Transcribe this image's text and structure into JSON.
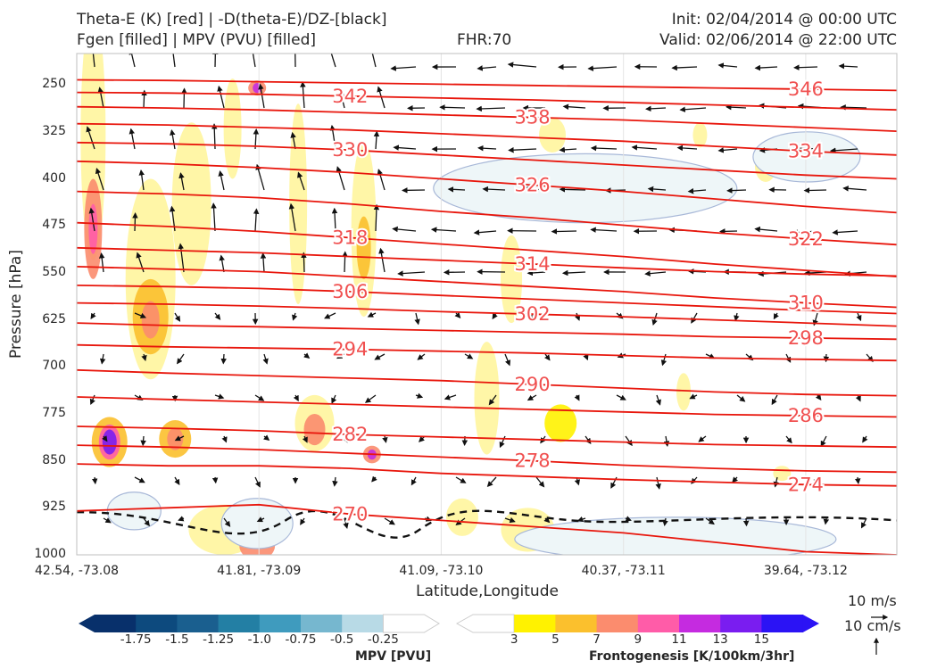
{
  "header": {
    "title_left_1": "Theta-E (K) [red] | -D(theta-E)/DZ-[black]",
    "title_left_2": "Fgen [filled] | MPV (PVU) [filled]",
    "fhr": "FHR:70",
    "init": "Init: 02/04/2014 @ 00:00 UTC",
    "valid": "Valid: 02/06/2014 @ 22:00 UTC"
  },
  "chart_data": {
    "type": "cross-section",
    "title": "Theta-E (K) [red] | -D(theta-E)/DZ-[black] / Fgen [filled] | MPV (PVU) [filled]",
    "xlabel": "Latitude,Longitude",
    "ylabel": "Pressure [hPa]",
    "y_ticks": [
      "250",
      "325",
      "400",
      "475",
      "550",
      "625",
      "700",
      "775",
      "850",
      "925",
      "1000"
    ],
    "y_tick_values": [
      250,
      325,
      400,
      475,
      550,
      625,
      700,
      775,
      850,
      925,
      1000
    ],
    "ylim": [
      1000,
      200
    ],
    "x_ticks": [
      "42.54, -73.08",
      "41.81, -73.09",
      "41.09, -73.10",
      "40.37, -73.11",
      "39.64, -73.12"
    ],
    "x_tick_positions": [
      0,
      0.2222,
      0.4444,
      0.6667,
      0.8889
    ],
    "theta_e_contours": [
      {
        "label": "270",
        "values": [
          930,
          925,
          920,
          935,
          945,
          955,
          965,
          980,
          995,
          1000
        ]
      },
      {
        "label": "274",
        "values": [
          855,
          858,
          858,
          862,
          870,
          875,
          880,
          884,
          888,
          890
        ]
      },
      {
        "label": "278",
        "values": [
          825,
          828,
          832,
          838,
          844,
          850,
          857,
          862,
          866,
          868
        ]
      },
      {
        "label": "282",
        "values": [
          795,
          798,
          802,
          808,
          812,
          816,
          820,
          824,
          826,
          828
        ]
      },
      {
        "label": "286",
        "values": [
          748,
          752,
          756,
          760,
          764,
          768,
          772,
          776,
          778,
          780
        ]
      },
      {
        "label": "290",
        "values": [
          705,
          710,
          714,
          718,
          722,
          728,
          734,
          740,
          744,
          746
        ]
      },
      {
        "label": "294",
        "values": [
          665,
          668,
          670,
          672,
          675,
          678,
          682,
          686,
          688,
          690
        ]
      },
      {
        "label": "298",
        "values": [
          630,
          634,
          636,
          639,
          642,
          645,
          648,
          652,
          654,
          656
        ]
      },
      {
        "label": "302",
        "values": [
          598,
          600,
          603,
          607,
          612,
          616,
          620,
          625,
          630,
          635
        ]
      },
      {
        "label": "306",
        "values": [
          570,
          572,
          575,
          580,
          586,
          592,
          598,
          604,
          610,
          615
        ]
      },
      {
        "label": "310",
        "values": [
          540,
          544,
          548,
          556,
          564,
          572,
          580,
          590,
          598,
          605
        ]
      },
      {
        "label": "314",
        "values": [
          510,
          514,
          518,
          524,
          530,
          536,
          542,
          548,
          552,
          555
        ]
      },
      {
        "label": "318",
        "values": [
          470,
          476,
          484,
          494,
          504,
          514,
          524,
          536,
          546,
          556
        ]
      },
      {
        "label": "322",
        "values": [
          420,
          424,
          430,
          440,
          452,
          462,
          474,
          486,
          496,
          505
        ]
      },
      {
        "label": "326",
        "values": [
          372,
          376,
          382,
          390,
          400,
          410,
          420,
          432,
          444,
          454
        ]
      },
      {
        "label": "330",
        "values": [
          342,
          344,
          348,
          354,
          362,
          370,
          378,
          386,
          394,
          400
        ]
      },
      {
        "label": "334",
        "values": [
          312,
          314,
          318,
          322,
          328,
          334,
          340,
          348,
          356,
          362
        ]
      },
      {
        "label": "338",
        "values": [
          285,
          287,
          290,
          294,
          298,
          302,
          306,
          312,
          318,
          324
        ]
      },
      {
        "label": "342",
        "values": [
          262,
          263,
          265,
          268,
          271,
          274,
          278,
          282,
          286,
          290
        ]
      },
      {
        "label": "346",
        "values": [
          242,
          243,
          245,
          247,
          249,
          251,
          253,
          255,
          257,
          259
        ]
      }
    ],
    "mpv_colorbar": {
      "label": "MPV [PVU]",
      "ticks": [
        "-1.75",
        "-1.5",
        "-1.25",
        "-1.0",
        "-0.75",
        "-0.5",
        "-0.25"
      ],
      "colors": [
        "#08306b",
        "#0d4a7e",
        "#1a5f8f",
        "#237fa4",
        "#3f9bbe",
        "#76b7cf",
        "#b8dae6",
        "#ffffff"
      ]
    },
    "fgen_colorbar": {
      "label": "Frontogenesis [K/100km/3hr]",
      "ticks": [
        "3",
        "5",
        "7",
        "9",
        "11",
        "13",
        "15"
      ],
      "colors": [
        "#ffffff",
        "#fff200",
        "#fbc02d",
        "#fb8c6e",
        "#ff5ca8",
        "#c52be0",
        "#7a1df0",
        "#2b13f5"
      ]
    },
    "wind_key": {
      "horizontal": "10 m/s",
      "vertical": "10 cm/s"
    }
  }
}
